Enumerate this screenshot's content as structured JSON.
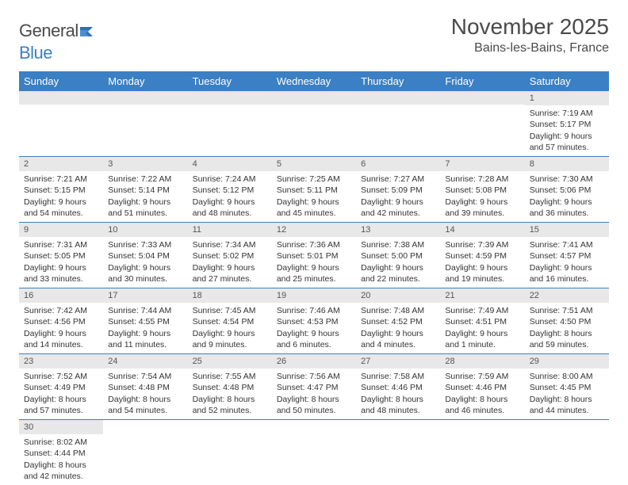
{
  "brand": {
    "part1": "General",
    "part2": "Blue"
  },
  "title": "November 2025",
  "location": "Bains-les-Bains, France",
  "colors": {
    "header_bg": "#3b7fc4",
    "header_text": "#ffffff",
    "daynum_bg": "#e8e8e8",
    "row_border": "#3b7fc4",
    "text": "#333333",
    "title_text": "#4a4a4a"
  },
  "weekdays": [
    "Sunday",
    "Monday",
    "Tuesday",
    "Wednesday",
    "Thursday",
    "Friday",
    "Saturday"
  ],
  "weeks": [
    [
      {
        "empty": true
      },
      {
        "empty": true
      },
      {
        "empty": true
      },
      {
        "empty": true
      },
      {
        "empty": true
      },
      {
        "empty": true
      },
      {
        "day": "1",
        "sunrise": "Sunrise: 7:19 AM",
        "sunset": "Sunset: 5:17 PM",
        "dl1": "Daylight: 9 hours",
        "dl2": "and 57 minutes."
      }
    ],
    [
      {
        "day": "2",
        "sunrise": "Sunrise: 7:21 AM",
        "sunset": "Sunset: 5:15 PM",
        "dl1": "Daylight: 9 hours",
        "dl2": "and 54 minutes."
      },
      {
        "day": "3",
        "sunrise": "Sunrise: 7:22 AM",
        "sunset": "Sunset: 5:14 PM",
        "dl1": "Daylight: 9 hours",
        "dl2": "and 51 minutes."
      },
      {
        "day": "4",
        "sunrise": "Sunrise: 7:24 AM",
        "sunset": "Sunset: 5:12 PM",
        "dl1": "Daylight: 9 hours",
        "dl2": "and 48 minutes."
      },
      {
        "day": "5",
        "sunrise": "Sunrise: 7:25 AM",
        "sunset": "Sunset: 5:11 PM",
        "dl1": "Daylight: 9 hours",
        "dl2": "and 45 minutes."
      },
      {
        "day": "6",
        "sunrise": "Sunrise: 7:27 AM",
        "sunset": "Sunset: 5:09 PM",
        "dl1": "Daylight: 9 hours",
        "dl2": "and 42 minutes."
      },
      {
        "day": "7",
        "sunrise": "Sunrise: 7:28 AM",
        "sunset": "Sunset: 5:08 PM",
        "dl1": "Daylight: 9 hours",
        "dl2": "and 39 minutes."
      },
      {
        "day": "8",
        "sunrise": "Sunrise: 7:30 AM",
        "sunset": "Sunset: 5:06 PM",
        "dl1": "Daylight: 9 hours",
        "dl2": "and 36 minutes."
      }
    ],
    [
      {
        "day": "9",
        "sunrise": "Sunrise: 7:31 AM",
        "sunset": "Sunset: 5:05 PM",
        "dl1": "Daylight: 9 hours",
        "dl2": "and 33 minutes."
      },
      {
        "day": "10",
        "sunrise": "Sunrise: 7:33 AM",
        "sunset": "Sunset: 5:04 PM",
        "dl1": "Daylight: 9 hours",
        "dl2": "and 30 minutes."
      },
      {
        "day": "11",
        "sunrise": "Sunrise: 7:34 AM",
        "sunset": "Sunset: 5:02 PM",
        "dl1": "Daylight: 9 hours",
        "dl2": "and 27 minutes."
      },
      {
        "day": "12",
        "sunrise": "Sunrise: 7:36 AM",
        "sunset": "Sunset: 5:01 PM",
        "dl1": "Daylight: 9 hours",
        "dl2": "and 25 minutes."
      },
      {
        "day": "13",
        "sunrise": "Sunrise: 7:38 AM",
        "sunset": "Sunset: 5:00 PM",
        "dl1": "Daylight: 9 hours",
        "dl2": "and 22 minutes."
      },
      {
        "day": "14",
        "sunrise": "Sunrise: 7:39 AM",
        "sunset": "Sunset: 4:59 PM",
        "dl1": "Daylight: 9 hours",
        "dl2": "and 19 minutes."
      },
      {
        "day": "15",
        "sunrise": "Sunrise: 7:41 AM",
        "sunset": "Sunset: 4:57 PM",
        "dl1": "Daylight: 9 hours",
        "dl2": "and 16 minutes."
      }
    ],
    [
      {
        "day": "16",
        "sunrise": "Sunrise: 7:42 AM",
        "sunset": "Sunset: 4:56 PM",
        "dl1": "Daylight: 9 hours",
        "dl2": "and 14 minutes."
      },
      {
        "day": "17",
        "sunrise": "Sunrise: 7:44 AM",
        "sunset": "Sunset: 4:55 PM",
        "dl1": "Daylight: 9 hours",
        "dl2": "and 11 minutes."
      },
      {
        "day": "18",
        "sunrise": "Sunrise: 7:45 AM",
        "sunset": "Sunset: 4:54 PM",
        "dl1": "Daylight: 9 hours",
        "dl2": "and 9 minutes."
      },
      {
        "day": "19",
        "sunrise": "Sunrise: 7:46 AM",
        "sunset": "Sunset: 4:53 PM",
        "dl1": "Daylight: 9 hours",
        "dl2": "and 6 minutes."
      },
      {
        "day": "20",
        "sunrise": "Sunrise: 7:48 AM",
        "sunset": "Sunset: 4:52 PM",
        "dl1": "Daylight: 9 hours",
        "dl2": "and 4 minutes."
      },
      {
        "day": "21",
        "sunrise": "Sunrise: 7:49 AM",
        "sunset": "Sunset: 4:51 PM",
        "dl1": "Daylight: 9 hours",
        "dl2": "and 1 minute."
      },
      {
        "day": "22",
        "sunrise": "Sunrise: 7:51 AM",
        "sunset": "Sunset: 4:50 PM",
        "dl1": "Daylight: 8 hours",
        "dl2": "and 59 minutes."
      }
    ],
    [
      {
        "day": "23",
        "sunrise": "Sunrise: 7:52 AM",
        "sunset": "Sunset: 4:49 PM",
        "dl1": "Daylight: 8 hours",
        "dl2": "and 57 minutes."
      },
      {
        "day": "24",
        "sunrise": "Sunrise: 7:54 AM",
        "sunset": "Sunset: 4:48 PM",
        "dl1": "Daylight: 8 hours",
        "dl2": "and 54 minutes."
      },
      {
        "day": "25",
        "sunrise": "Sunrise: 7:55 AM",
        "sunset": "Sunset: 4:48 PM",
        "dl1": "Daylight: 8 hours",
        "dl2": "and 52 minutes."
      },
      {
        "day": "26",
        "sunrise": "Sunrise: 7:56 AM",
        "sunset": "Sunset: 4:47 PM",
        "dl1": "Daylight: 8 hours",
        "dl2": "and 50 minutes."
      },
      {
        "day": "27",
        "sunrise": "Sunrise: 7:58 AM",
        "sunset": "Sunset: 4:46 PM",
        "dl1": "Daylight: 8 hours",
        "dl2": "and 48 minutes."
      },
      {
        "day": "28",
        "sunrise": "Sunrise: 7:59 AM",
        "sunset": "Sunset: 4:46 PM",
        "dl1": "Daylight: 8 hours",
        "dl2": "and 46 minutes."
      },
      {
        "day": "29",
        "sunrise": "Sunrise: 8:00 AM",
        "sunset": "Sunset: 4:45 PM",
        "dl1": "Daylight: 8 hours",
        "dl2": "and 44 minutes."
      }
    ],
    [
      {
        "day": "30",
        "sunrise": "Sunrise: 8:02 AM",
        "sunset": "Sunset: 4:44 PM",
        "dl1": "Daylight: 8 hours",
        "dl2": "and 42 minutes."
      },
      {
        "empty": true,
        "noborder": true
      },
      {
        "empty": true,
        "noborder": true
      },
      {
        "empty": true,
        "noborder": true
      },
      {
        "empty": true,
        "noborder": true
      },
      {
        "empty": true,
        "noborder": true
      },
      {
        "empty": true,
        "noborder": true
      }
    ]
  ]
}
